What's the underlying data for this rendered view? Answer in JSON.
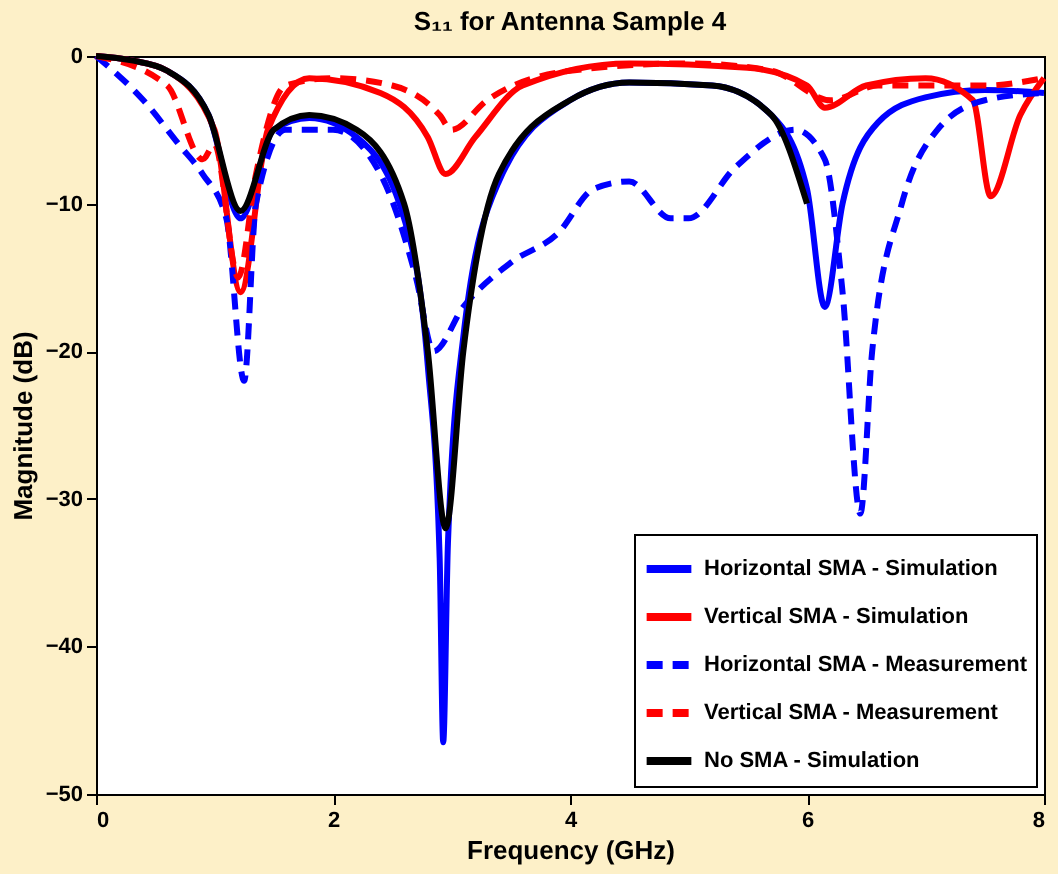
{
  "chart_data": {
    "type": "line",
    "title": "S₁₁ for Antenna Sample 4",
    "xlabel": "Frequency (GHz)",
    "ylabel": "Magnitude (dB)",
    "xlim": [
      0,
      8
    ],
    "xticks": [
      0,
      2,
      4,
      6,
      8
    ],
    "ylim": [
      -50,
      0
    ],
    "yticks": [
      -50,
      -40,
      -30,
      -20,
      -10,
      0
    ],
    "grid": false,
    "legend": "bottom right",
    "marker": "none",
    "series": [
      {
        "name": "Horizontal SMA - Simulation",
        "color": "#0000ff",
        "line_style": "solid",
        "x": [
          0,
          0.3,
          0.6,
          0.95,
          1.22,
          1.5,
          1.8,
          2.2,
          2.6,
          2.8,
          2.9,
          2.93,
          2.97,
          3.1,
          3.4,
          4,
          4.5,
          5.2,
          5.7,
          6.0,
          6.15,
          6.3,
          6.6,
          7,
          7.5,
          8
        ],
        "values": [
          0,
          -0.3,
          -1,
          -4,
          -11,
          -5,
          -4.2,
          -5.5,
          -11,
          -21,
          -34,
          -46.5,
          -33,
          -19,
          -8.5,
          -3,
          -1.8,
          -2,
          -4,
          -9,
          -17,
          -10,
          -4.5,
          -2.8,
          -2.3,
          -2.5
        ]
      },
      {
        "name": "Vertical SMA - Simulation",
        "color": "#ff0000",
        "line_style": "solid",
        "x": [
          0,
          0.3,
          0.6,
          1.0,
          1.22,
          1.45,
          1.8,
          2.4,
          2.8,
          2.95,
          3.2,
          3.6,
          4.5,
          5.5,
          6.0,
          6.15,
          6.5,
          7,
          7.4,
          7.55,
          7.8,
          8
        ],
        "values": [
          0,
          -0.3,
          -1,
          -5,
          -16,
          -5,
          -1.5,
          -2.5,
          -5.5,
          -8,
          -5.5,
          -2,
          -0.5,
          -0.8,
          -2,
          -3.5,
          -2,
          -1.5,
          -3,
          -9.5,
          -4,
          -1.5
        ]
      },
      {
        "name": "Horizontal SMA - Measurement",
        "color": "#0000ff",
        "line_style": "dashed",
        "x": [
          0,
          0.4,
          0.7,
          0.9,
          1.1,
          1.25,
          1.35,
          1.6,
          2.0,
          2.4,
          2.7,
          2.85,
          3.1,
          3.5,
          3.9,
          4.2,
          4.5,
          4.85,
          5.0,
          5.4,
          5.9,
          6.15,
          6.3,
          6.45,
          6.55,
          6.8,
          7.1,
          7.5,
          8
        ],
        "values": [
          0,
          -3,
          -6,
          -8,
          -11,
          -22,
          -10,
          -5,
          -5,
          -8,
          -15,
          -20,
          -17,
          -14,
          -12,
          -9,
          -8.5,
          -11,
          -11,
          -7.5,
          -5,
          -7,
          -16,
          -31,
          -20,
          -10,
          -5,
          -3,
          -2.5
        ]
      },
      {
        "name": "Vertical SMA - Measurement",
        "color": "#ff0000",
        "line_style": "dashed",
        "x": [
          0,
          0.6,
          0.9,
          1.0,
          1.2,
          1.35,
          1.6,
          2.0,
          2.5,
          2.9,
          3.0,
          3.3,
          4,
          5,
          5.7,
          6.2,
          6.6,
          7.5,
          8
        ],
        "values": [
          0,
          -2,
          -7,
          -6,
          -15,
          -8,
          -2,
          -1.5,
          -2,
          -4,
          -5,
          -3,
          -1,
          -0.5,
          -1,
          -3,
          -2,
          -2,
          -1.5
        ]
      },
      {
        "name": "No SMA - Simulation",
        "color": "#000000",
        "line_style": "solid",
        "x": [
          0,
          0.3,
          0.6,
          0.95,
          1.22,
          1.5,
          1.8,
          2.2,
          2.6,
          2.8,
          2.95,
          3.1,
          3.4,
          4,
          4.5,
          5.2,
          5.7,
          6.0
        ],
        "values": [
          0,
          -0.3,
          -1,
          -4,
          -10.5,
          -5,
          -4,
          -5,
          -10,
          -20,
          -32,
          -20,
          -8,
          -3,
          -1.8,
          -2,
          -4,
          -10
        ]
      }
    ]
  }
}
